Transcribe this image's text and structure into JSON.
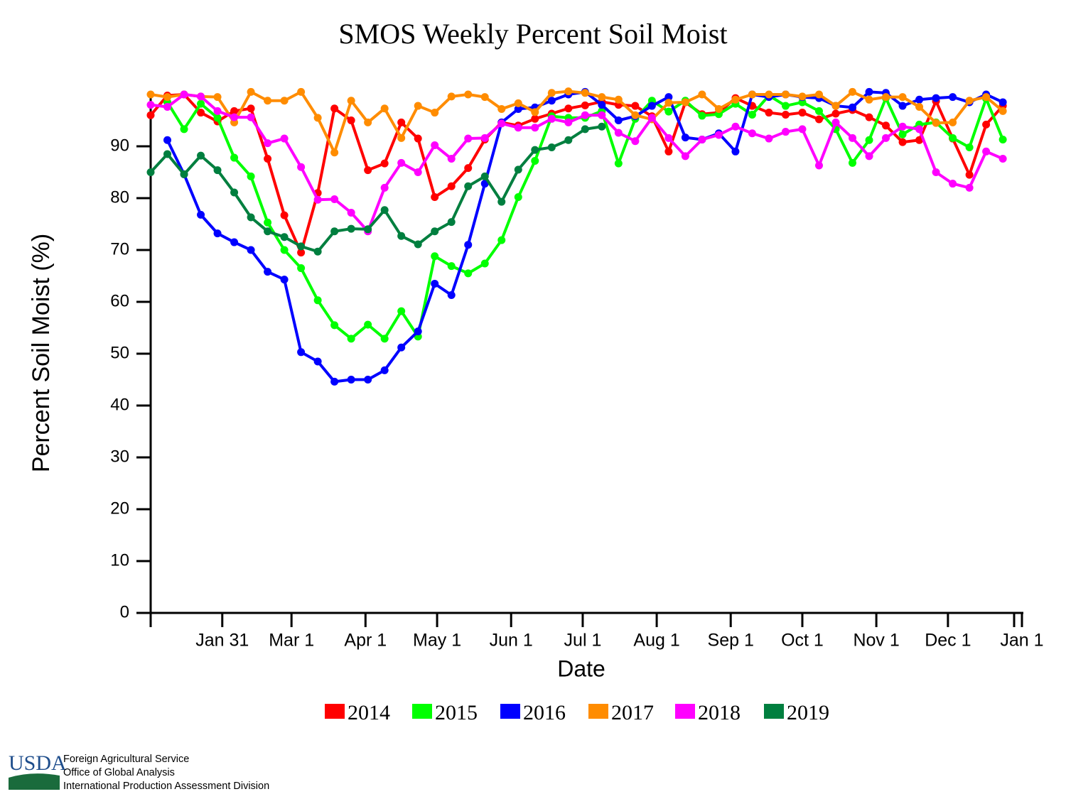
{
  "chart_data": {
    "type": "line",
    "title": "SMOS Weekly Percent Soil Moist",
    "x_label": "Date",
    "y_label": "Percent Soil Moist (%)",
    "x": [
      0,
      7,
      14,
      21,
      28,
      35,
      42,
      49,
      56,
      63,
      70,
      77,
      84,
      91,
      98,
      105,
      112,
      119,
      126,
      133,
      140,
      147,
      154,
      161,
      168,
      175,
      182,
      189,
      196,
      203,
      210,
      217,
      224,
      231,
      238,
      245,
      252,
      259,
      266,
      273,
      280,
      287,
      294,
      301,
      308,
      315,
      322,
      329,
      336,
      343,
      350,
      357
    ],
    "xlim": [
      0,
      365
    ],
    "xticks": [
      {
        "value": 30,
        "label": "Jan 31"
      },
      {
        "value": 59,
        "label": "Mar 1"
      },
      {
        "value": 90,
        "label": "Apr 1"
      },
      {
        "value": 120,
        "label": "May 1"
      },
      {
        "value": 151,
        "label": "Jun 1"
      },
      {
        "value": 181,
        "label": "Jul 1"
      },
      {
        "value": 212,
        "label": "Aug 1"
      },
      {
        "value": 243,
        "label": "Sep 1"
      },
      {
        "value": 273,
        "label": "Oct 1"
      },
      {
        "value": 304,
        "label": "Nov 1"
      },
      {
        "value": 334,
        "label": "Dec 1"
      },
      {
        "value": 365,
        "label": "Jan 1"
      }
    ],
    "ylim": [
      0,
      100
    ],
    "yticks": [
      0,
      10,
      20,
      30,
      40,
      50,
      60,
      70,
      80,
      90
    ],
    "legend": "bottom",
    "series": [
      {
        "name": "2014",
        "color": "#ff0000",
        "values": [
          96,
          99.8,
          100,
          96.5,
          94.8,
          96.8,
          97.3,
          87.6,
          76.7,
          69.5,
          81,
          97.3,
          95,
          85.4,
          86.7,
          94.6,
          91.5,
          80.2,
          82.3,
          85.8,
          91.3,
          94.6,
          94,
          95.3,
          96.3,
          97.3,
          97.9,
          98.6,
          98,
          97.8,
          95.8,
          89,
          98.5,
          96.2,
          96.5,
          99.3,
          97.8,
          96.5,
          96.1,
          96.5,
          95.2,
          96.3,
          97,
          95.6,
          94,
          90.8,
          91.2,
          98.7,
          91.5,
          84.5,
          94.2,
          97.8
        ]
      },
      {
        "name": "2015",
        "color": "#00ff00",
        "values": [
          null,
          98.5,
          93.3,
          98.2,
          95.5,
          87.8,
          84.2,
          75.3,
          70,
          66.5,
          60.3,
          55.5,
          52.9,
          55.6,
          52.9,
          58.2,
          53.3,
          68.8,
          66.9,
          65.5,
          67.4,
          71.9,
          80.2,
          87.2,
          95.8,
          95.5,
          95.5,
          96.8,
          86.7,
          95.3,
          98.8,
          96.7,
          98.8,
          95.9,
          96.2,
          98.2,
          96.1,
          99.8,
          97.8,
          98.5,
          96.8,
          93.3,
          86.8,
          91.2,
          99.3,
          92.3,
          94.2,
          94.6,
          91.6,
          89.8,
          99.2,
          91.3
        ]
      },
      {
        "name": "2016",
        "color": "#0000ff",
        "values": [
          null,
          91.2,
          84.6,
          76.8,
          73.2,
          71.5,
          70,
          65.8,
          64.3,
          50.3,
          48.5,
          44.6,
          45,
          45,
          46.8,
          51.2,
          54.3,
          63.5,
          61.3,
          71,
          82.8,
          94.6,
          97.2,
          97.5,
          98.8,
          100,
          100.5,
          98,
          95,
          95.8,
          97.8,
          99.5,
          91.7,
          91.3,
          92.5,
          89,
          100,
          99.5,
          100,
          99.5,
          99.3,
          97.8,
          97.5,
          100.5,
          100.3,
          97.8,
          99,
          99.3,
          99.5,
          98.5,
          100,
          98.5
        ]
      },
      {
        "name": "2017",
        "color": "#ff8c00",
        "values": [
          100,
          99.5,
          100,
          99.6,
          99.5,
          94.6,
          100.5,
          98.8,
          98.8,
          100.5,
          95.5,
          88.8,
          98.8,
          94.6,
          97.3,
          91.6,
          97.8,
          96.5,
          99.6,
          100,
          99.5,
          97.2,
          98.3,
          96.6,
          100.3,
          100.6,
          100.3,
          99.5,
          99,
          96,
          95.2,
          98.4,
          98.5,
          100,
          97.2,
          99,
          100,
          100,
          100,
          99.6,
          100,
          97.8,
          100.5,
          99,
          99.5,
          99.5,
          97.6,
          94.5,
          94.6,
          98.8,
          99.5,
          96.8
        ]
      },
      {
        "name": "2018",
        "color": "#ff00ff",
        "values": [
          98,
          97.6,
          100,
          99.6,
          96.8,
          95.6,
          95.6,
          90.6,
          91.5,
          86,
          79.7,
          79.8,
          77.2,
          73.6,
          82,
          86.8,
          85,
          90.2,
          87.6,
          91.5,
          91.6,
          94.4,
          93.6,
          93.6,
          95.3,
          94.6,
          96,
          96,
          92.6,
          91,
          95.5,
          91.6,
          88.1,
          91.3,
          92.2,
          93.8,
          92.5,
          91.5,
          92.8,
          93.3,
          86.3,
          94.6,
          91.6,
          88.1,
          91.6,
          93.8,
          93.3,
          85,
          82.8,
          82,
          89,
          87.6
        ]
      },
      {
        "name": "2019",
        "color": "#007f3f",
        "values": [
          85,
          88.5,
          84.6,
          88.2,
          85.4,
          81.1,
          76.3,
          73.6,
          72.5,
          70.7,
          69.7,
          73.6,
          74.1,
          74,
          77.7,
          72.7,
          71.1,
          73.6,
          75.4,
          82.3,
          84.2,
          79.3,
          85.5,
          89.3,
          89.8,
          91.2,
          93.3,
          93.8,
          null,
          null,
          null,
          null,
          null,
          null,
          null,
          null,
          null,
          null,
          null,
          null,
          null,
          null,
          null,
          null,
          null,
          null,
          null,
          null,
          null,
          null,
          null,
          null
        ]
      }
    ]
  },
  "footer": {
    "logo": "USDA",
    "lines": [
      "Foreign Agricultural Service",
      "Office of Global Analysis",
      "International Production Assessment Division"
    ]
  }
}
